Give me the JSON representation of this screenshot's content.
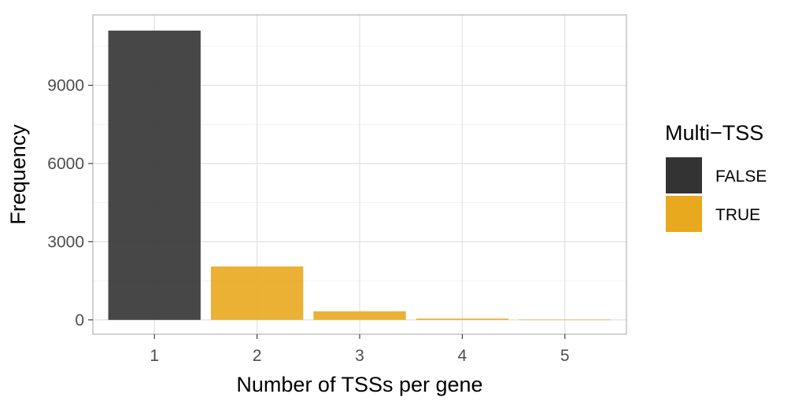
{
  "chart_data": {
    "type": "bar",
    "categories": [
      "1",
      "2",
      "3",
      "4",
      "5"
    ],
    "values": [
      11100,
      2050,
      330,
      50,
      8
    ],
    "bar_groups": [
      "FALSE",
      "TRUE",
      "TRUE",
      "TRUE",
      "TRUE"
    ],
    "xlabel": "Number of TSSs per gene",
    "ylabel": "Frequency",
    "ylim": [
      -550,
      11700
    ],
    "yticks": [
      0,
      3000,
      6000,
      9000
    ],
    "grid": true,
    "legend": {
      "title": "Multi−TSS",
      "position": "right",
      "entries": [
        {
          "label": "FALSE",
          "color": "#333333"
        },
        {
          "label": "TRUE",
          "color": "#E8A91F"
        }
      ]
    }
  }
}
